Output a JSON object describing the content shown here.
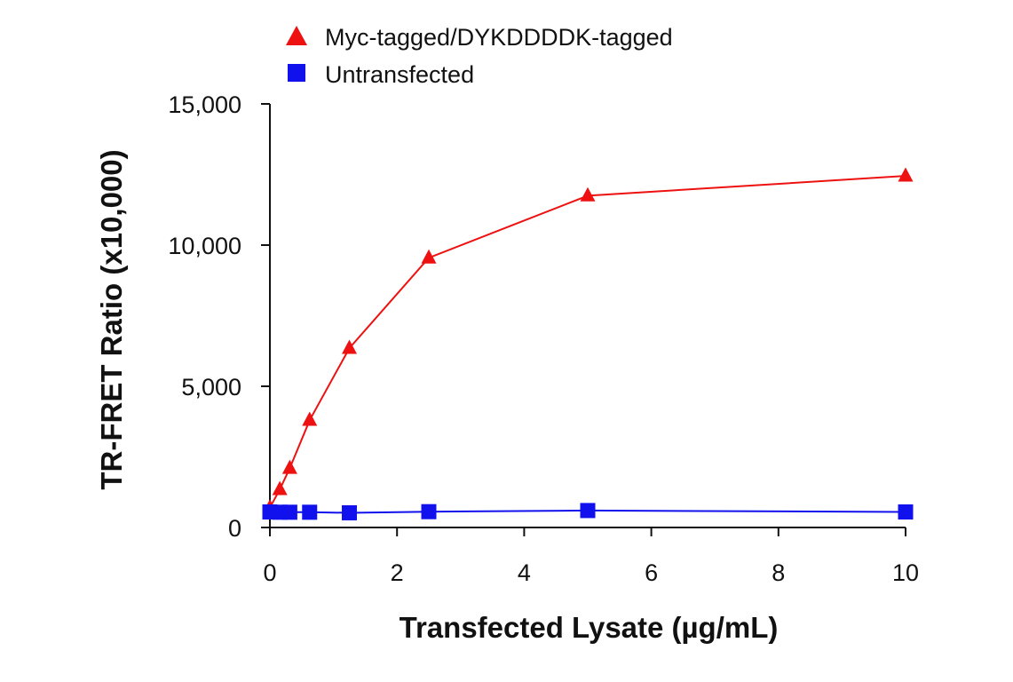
{
  "chart_data": {
    "type": "line",
    "xlabel": "Transfected Lysate (µg/mL)",
    "ylabel": "TR-FRET Ratio (x10,000)",
    "xlim": [
      0,
      10
    ],
    "ylim": [
      0,
      15000
    ],
    "x_ticks": [
      0,
      2,
      4,
      6,
      8,
      10
    ],
    "x_tick_labels": [
      "0",
      "2",
      "4",
      "6",
      "8",
      "10"
    ],
    "y_ticks": [
      0,
      5000,
      10000,
      15000
    ],
    "y_tick_labels": [
      "0",
      "5,000",
      "10,000",
      "15,000"
    ],
    "grid": false,
    "legend_position": "top-left",
    "series": [
      {
        "name": "Myc-tagged/DYKDDDDK-tagged",
        "marker": "triangle",
        "color": "#ee1111",
        "x": [
          0,
          0.156,
          0.3125,
          0.625,
          1.25,
          2.5,
          5,
          10
        ],
        "y": [
          700,
          1350,
          2100,
          3800,
          6350,
          9550,
          11750,
          12450
        ]
      },
      {
        "name": "Untransfected",
        "marker": "square",
        "color": "#1111ee",
        "x": [
          0,
          0.156,
          0.3125,
          0.625,
          1.25,
          2.5,
          5,
          10
        ],
        "y": [
          550,
          540,
          540,
          540,
          520,
          560,
          600,
          550
        ]
      }
    ]
  }
}
